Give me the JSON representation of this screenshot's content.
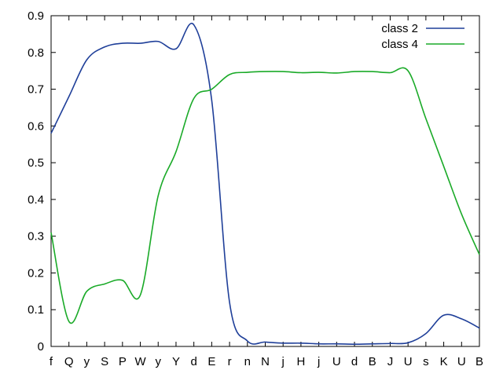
{
  "chart_data": {
    "type": "line",
    "title": "",
    "xlabel": "",
    "ylabel": "",
    "categories": [
      "f",
      "Q",
      "y",
      "S",
      "P",
      "W",
      "y",
      "Y",
      "d",
      "E",
      "r",
      "n",
      "N",
      "j",
      "H",
      "j",
      "U",
      "d",
      "B",
      "J",
      "U",
      "s",
      "K",
      "U",
      "B"
    ],
    "ylim": [
      0,
      0.9
    ],
    "yticks": [
      0,
      0.1,
      0.2,
      0.3,
      0.4,
      0.5,
      0.6,
      0.7,
      0.8,
      0.9
    ],
    "ytick_labels": [
      "0",
      "0.1",
      "0.2",
      "0.3",
      "0.4",
      "0.5",
      "0.6",
      "0.7",
      "0.8",
      "0.9"
    ],
    "grid": false,
    "legend": "top-right",
    "series": [
      {
        "name": "class 2",
        "color": "#1f3f99",
        "values": [
          0.58,
          0.68,
          0.78,
          0.815,
          0.825,
          0.825,
          0.83,
          0.81,
          0.875,
          0.67,
          0.12,
          0.015,
          0.012,
          0.009,
          0.009,
          0.007,
          0.007,
          0.006,
          0.007,
          0.008,
          0.01,
          0.035,
          0.085,
          0.075,
          0.05
        ]
      },
      {
        "name": "class 4",
        "color": "#1aaa28",
        "values": [
          0.31,
          0.068,
          0.15,
          0.17,
          0.18,
          0.14,
          0.41,
          0.53,
          0.675,
          0.7,
          0.74,
          0.746,
          0.748,
          0.748,
          0.745,
          0.746,
          0.744,
          0.748,
          0.748,
          0.745,
          0.75,
          0.62,
          0.49,
          0.36,
          0.25
        ]
      }
    ]
  }
}
